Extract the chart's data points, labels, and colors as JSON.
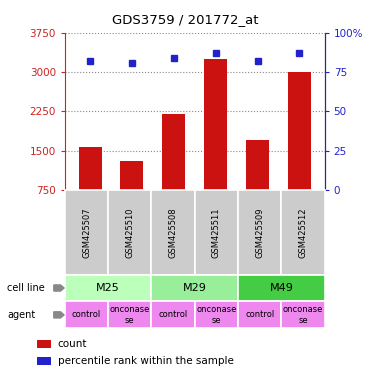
{
  "title": "GDS3759 / 201772_at",
  "samples": [
    "GSM425507",
    "GSM425510",
    "GSM425508",
    "GSM425511",
    "GSM425509",
    "GSM425512"
  ],
  "counts": [
    1580,
    1300,
    2200,
    3250,
    1700,
    3000
  ],
  "percentiles": [
    82,
    81,
    84,
    87,
    82,
    87
  ],
  "cell_lines": [
    {
      "label": "M25",
      "span": [
        0,
        2
      ],
      "color": "#bbffbb"
    },
    {
      "label": "M29",
      "span": [
        2,
        4
      ],
      "color": "#99ee99"
    },
    {
      "label": "M49",
      "span": [
        4,
        6
      ],
      "color": "#44cc44"
    }
  ],
  "agents": [
    "control",
    "onconase\nse",
    "control",
    "onconase\nse",
    "control",
    "onconase\nse"
  ],
  "agent_color": "#ee88ee",
  "ylim_left": [
    750,
    3750
  ],
  "yticks_left": [
    750,
    1500,
    2250,
    3000,
    3750
  ],
  "ylim_right": [
    0,
    100
  ],
  "yticks_right": [
    0,
    25,
    50,
    75,
    100
  ],
  "bar_color": "#cc1111",
  "dot_color": "#2222cc",
  "bar_width": 0.55,
  "background_color": "#ffffff",
  "plot_bg": "#ffffff",
  "grid_color": "#888888",
  "sample_bg": "#cccccc",
  "left_axis_color": "#cc2222",
  "right_axis_color": "#2222cc"
}
